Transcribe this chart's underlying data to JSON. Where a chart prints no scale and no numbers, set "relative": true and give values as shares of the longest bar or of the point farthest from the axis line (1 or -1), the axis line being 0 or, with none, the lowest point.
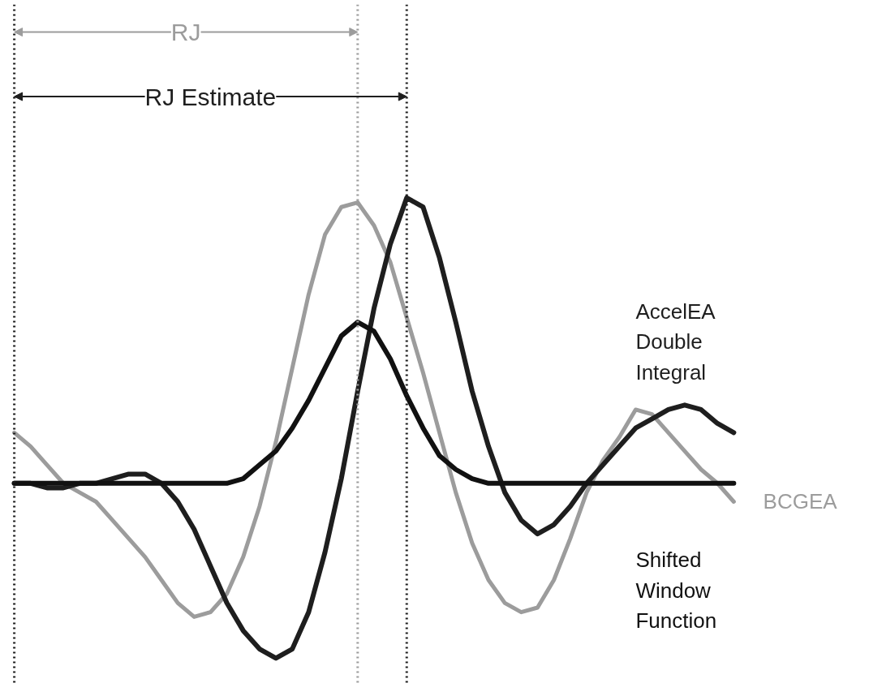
{
  "chart_data": {
    "type": "line",
    "relative": true,
    "line_style": "solid",
    "categories": [
      null,
      null,
      null,
      null,
      null,
      null,
      null,
      null,
      null,
      null,
      null,
      null,
      null,
      null,
      null,
      null,
      null,
      null,
      null,
      null,
      null,
      null,
      null,
      null,
      null,
      null,
      null,
      null,
      null,
      null,
      null,
      null,
      null,
      null,
      null,
      null,
      null,
      null,
      null,
      null,
      null,
      null,
      null,
      null,
      null
    ],
    "series": [
      {
        "name": "BCGEA",
        "color": "#9c9c9c",
        "values": [
          0.49,
          0.46,
          0.42,
          0.38,
          0.36,
          0.34,
          0.3,
          0.26,
          0.22,
          0.17,
          0.12,
          0.09,
          0.1,
          0.14,
          0.22,
          0.33,
          0.47,
          0.63,
          0.79,
          0.92,
          0.98,
          0.99,
          0.94,
          0.86,
          0.74,
          0.62,
          0.49,
          0.36,
          0.25,
          0.17,
          0.12,
          0.1,
          0.11,
          0.17,
          0.26,
          0.36,
          0.43,
          0.48,
          0.54,
          0.53,
          0.49,
          0.45,
          0.41,
          0.38,
          0.34
        ]
      },
      {
        "name": "AccelEA Double Integral",
        "color": "#1e1e1e",
        "values": [
          0.38,
          0.38,
          0.37,
          0.37,
          0.38,
          0.38,
          0.39,
          0.4,
          0.4,
          0.38,
          0.34,
          0.28,
          0.2,
          0.12,
          0.06,
          0.02,
          0.0,
          0.02,
          0.1,
          0.23,
          0.39,
          0.58,
          0.76,
          0.9,
          1.0,
          0.98,
          0.87,
          0.73,
          0.58,
          0.46,
          0.36,
          0.3,
          0.27,
          0.29,
          0.33,
          0.38,
          0.42,
          0.46,
          0.5,
          0.52,
          0.54,
          0.55,
          0.54,
          0.51,
          0.49
        ]
      },
      {
        "name": "Shifted Window Function",
        "color": "#111111",
        "values": [
          0.38,
          0.38,
          0.38,
          0.38,
          0.38,
          0.38,
          0.38,
          0.38,
          0.38,
          0.38,
          0.38,
          0.38,
          0.38,
          0.38,
          0.39,
          0.42,
          0.45,
          0.5,
          0.56,
          0.63,
          0.7,
          0.73,
          0.71,
          0.65,
          0.57,
          0.5,
          0.44,
          0.41,
          0.39,
          0.38,
          0.38,
          0.38,
          0.38,
          0.38,
          0.38,
          0.38,
          0.38,
          0.38,
          0.38,
          0.38,
          0.38,
          0.38,
          0.38,
          0.38,
          0.38
        ]
      }
    ],
    "annotations": [
      "RJ",
      "RJ Estimate"
    ]
  }
}
